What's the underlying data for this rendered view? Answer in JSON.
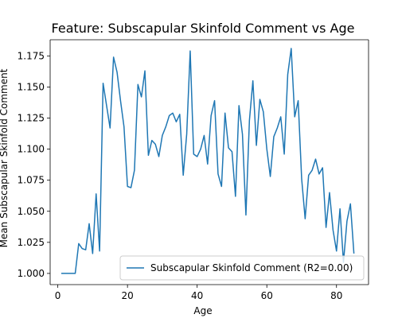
{
  "chart_data": {
    "type": "line",
    "title": "Feature: Subscapular Skinfold Comment vs Age",
    "xlabel": "Age",
    "ylabel": "Mean Subscapular Skinfold Comment",
    "xlim": [
      -2.2,
      89.2
    ],
    "ylim": [
      0.991,
      1.188
    ],
    "xticks": [
      0,
      20,
      40,
      60,
      80
    ],
    "yticks": [
      1.0,
      1.025,
      1.05,
      1.075,
      1.1,
      1.125,
      1.15,
      1.175
    ],
    "ytick_labels": [
      "1.000",
      "1.025",
      "1.050",
      "1.075",
      "1.100",
      "1.125",
      "1.150",
      "1.175"
    ],
    "legend_position": "lower-right",
    "grid": false,
    "series": [
      {
        "name": "Subscapular Skinfold Comment (R2=0.00)",
        "color": "#1f77b4",
        "x": [
          1,
          2,
          3,
          4,
          5,
          6,
          7,
          8,
          9,
          10,
          11,
          12,
          13,
          14,
          15,
          16,
          17,
          18,
          19,
          20,
          21,
          22,
          23,
          24,
          25,
          26,
          27,
          28,
          29,
          30,
          31,
          32,
          33,
          34,
          35,
          36,
          37,
          38,
          39,
          40,
          41,
          42,
          43,
          44,
          45,
          46,
          47,
          48,
          49,
          50,
          51,
          52,
          53,
          54,
          55,
          56,
          57,
          58,
          59,
          60,
          61,
          62,
          63,
          64,
          65,
          66,
          67,
          68,
          69,
          70,
          71,
          72,
          73,
          74,
          75,
          76,
          77,
          78,
          79,
          80,
          81,
          82,
          83,
          84,
          85
        ],
        "y": [
          1.0,
          1.0,
          1.0,
          1.0,
          1.0,
          1.024,
          1.02,
          1.019,
          1.04,
          1.016,
          1.064,
          1.018,
          1.153,
          1.135,
          1.117,
          1.174,
          1.162,
          1.139,
          1.118,
          1.07,
          1.069,
          1.083,
          1.152,
          1.142,
          1.163,
          1.095,
          1.107,
          1.104,
          1.094,
          1.111,
          1.118,
          1.127,
          1.129,
          1.122,
          1.128,
          1.079,
          1.112,
          1.179,
          1.096,
          1.094,
          1.1,
          1.111,
          1.088,
          1.127,
          1.139,
          1.08,
          1.07,
          1.129,
          1.101,
          1.098,
          1.062,
          1.135,
          1.112,
          1.047,
          1.123,
          1.155,
          1.103,
          1.14,
          1.13,
          1.1,
          1.078,
          1.11,
          1.117,
          1.126,
          1.096,
          1.16,
          1.181,
          1.126,
          1.139,
          1.076,
          1.044,
          1.079,
          1.083,
          1.092,
          1.08,
          1.085,
          1.037,
          1.065,
          1.035,
          1.018,
          1.052,
          1.009,
          1.042,
          1.056,
          1.016
        ]
      }
    ]
  }
}
